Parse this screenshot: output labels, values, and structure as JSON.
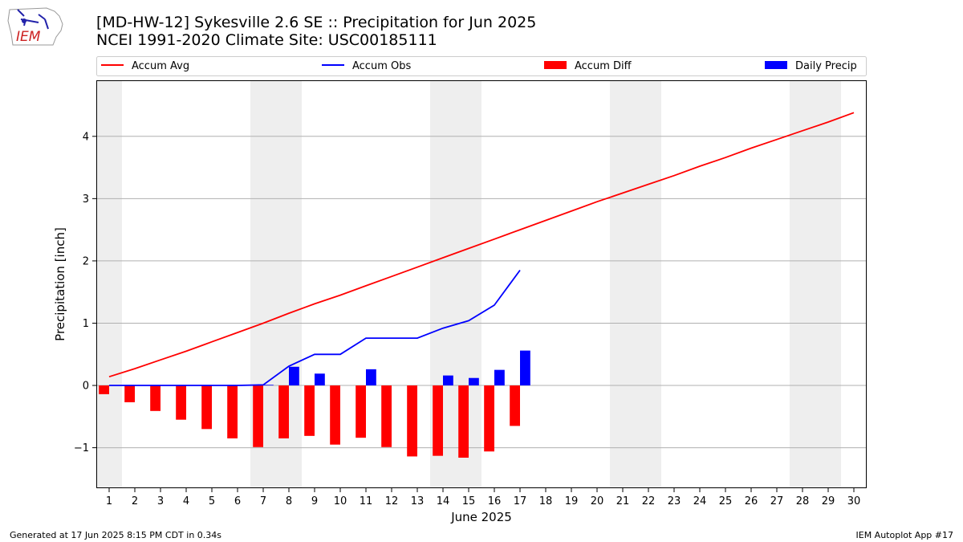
{
  "header": {
    "title_line1": "[MD-HW-12] Sykesville 2.6 SE :: Precipitation for Jun 2025",
    "title_line2": "NCEI 1991-2020 Climate Site: USC00185111",
    "logo_text": "IEM"
  },
  "footer": {
    "left": "Generated at 17 Jun 2025 8:15 PM CDT in 0.34s",
    "right": "IEM Autoplot App #17"
  },
  "colors": {
    "avg": "#ff0000",
    "obs": "#0000ff",
    "diff": "#ff0000",
    "daily": "#0000ff",
    "weekend_band": "#eeeeee",
    "grid": "#b0b0b0"
  },
  "chart_data": {
    "type": "bar",
    "xlabel": "June 2025",
    "ylabel": "Precipitation [inch]",
    "xlim": [
      0.5,
      30.5
    ],
    "ylim": [
      -1.65,
      4.9
    ],
    "yticks": [
      -1,
      0,
      1,
      2,
      3,
      4
    ],
    "grid": "y-major",
    "legend_position": "top",
    "weekend_days": [
      1,
      7,
      8,
      14,
      15,
      21,
      22,
      28,
      29
    ],
    "days": [
      1,
      2,
      3,
      4,
      5,
      6,
      7,
      8,
      9,
      10,
      11,
      12,
      13,
      14,
      15,
      16,
      17,
      18,
      19,
      20,
      21,
      22,
      23,
      24,
      25,
      26,
      27,
      28,
      29,
      30
    ],
    "series": [
      {
        "name": "Accum Avg",
        "type": "line",
        "x": [
          1,
          2,
          3,
          4,
          5,
          6,
          7,
          8,
          9,
          10,
          11,
          12,
          13,
          14,
          15,
          16,
          17,
          18,
          19,
          20,
          21,
          22,
          23,
          24,
          25,
          26,
          27,
          28,
          29,
          30
        ],
        "values": [
          0.14,
          0.27,
          0.41,
          0.55,
          0.7,
          0.85,
          1.0,
          1.16,
          1.31,
          1.45,
          1.6,
          1.75,
          1.9,
          2.05,
          2.2,
          2.35,
          2.5,
          2.65,
          2.8,
          2.95,
          3.09,
          3.23,
          3.37,
          3.52,
          3.66,
          3.81,
          3.95,
          4.09,
          4.23,
          4.38
        ]
      },
      {
        "name": "Accum Obs",
        "type": "line",
        "x": [
          1,
          2,
          3,
          4,
          5,
          6,
          7,
          8,
          9,
          10,
          11,
          12,
          13,
          14,
          15,
          16,
          17
        ],
        "values": [
          0.0,
          0.0,
          0.0,
          0.0,
          0.0,
          0.0,
          0.01,
          0.31,
          0.5,
          0.5,
          0.76,
          0.76,
          0.76,
          0.92,
          1.04,
          1.29,
          1.85
        ]
      },
      {
        "name": "Accum Diff",
        "type": "bar",
        "x": [
          1,
          2,
          3,
          4,
          5,
          6,
          7,
          8,
          9,
          10,
          11,
          12,
          13,
          14,
          15,
          16,
          17
        ],
        "values": [
          -0.14,
          -0.27,
          -0.41,
          -0.55,
          -0.7,
          -0.85,
          -0.99,
          -0.85,
          -0.81,
          -0.95,
          -0.84,
          -0.99,
          -1.14,
          -1.13,
          -1.16,
          -1.06,
          -0.65
        ]
      },
      {
        "name": "Daily Precip",
        "type": "bar",
        "x": [
          1,
          2,
          3,
          4,
          5,
          6,
          7,
          8,
          9,
          10,
          11,
          12,
          13,
          14,
          15,
          16,
          17
        ],
        "values": [
          0,
          0,
          0,
          0,
          0,
          0,
          0.01,
          0.3,
          0.19,
          0,
          0.26,
          0,
          0,
          0.16,
          0.12,
          0.25,
          0.56
        ]
      }
    ]
  }
}
